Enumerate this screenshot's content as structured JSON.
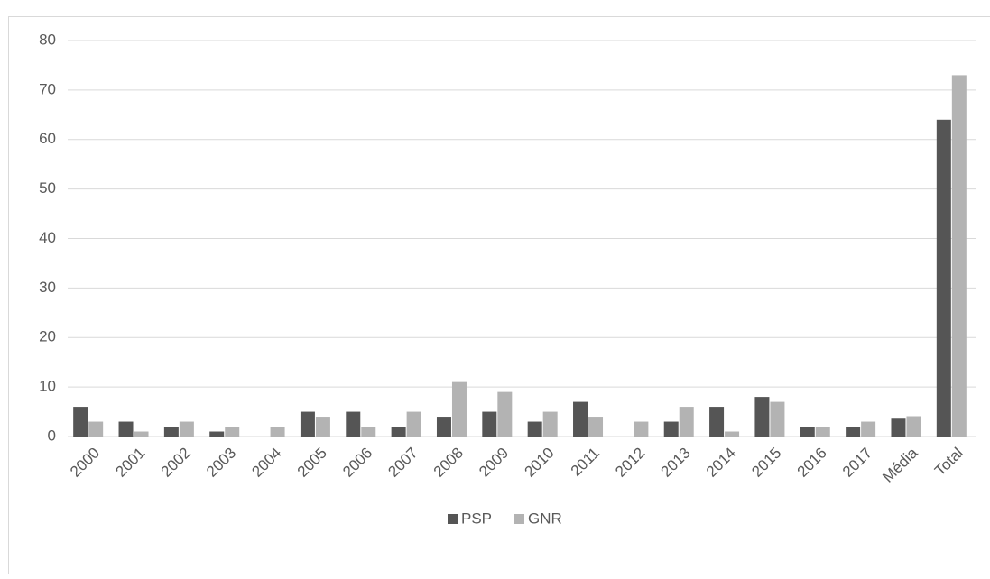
{
  "chart_data": {
    "type": "bar",
    "categories": [
      "2000",
      "2001",
      "2002",
      "2003",
      "2004",
      "2005",
      "2006",
      "2007",
      "2008",
      "2009",
      "2010",
      "2011",
      "2012",
      "2013",
      "2014",
      "2015",
      "2016",
      "2017",
      "Média",
      "Total"
    ],
    "series": [
      {
        "name": "PSP",
        "color": "#555555",
        "values": [
          6,
          3,
          2,
          1,
          0,
          5,
          5,
          2,
          4,
          5,
          3,
          7,
          0,
          3,
          6,
          8,
          2,
          2,
          3.6,
          64
        ]
      },
      {
        "name": "GNR",
        "color": "#b3b3b3",
        "values": [
          3,
          1,
          3,
          2,
          2,
          4,
          2,
          5,
          11,
          9,
          5,
          4,
          3,
          6,
          1,
          7,
          2,
          3,
          4.1,
          73
        ]
      }
    ],
    "ylim": [
      0,
      80
    ],
    "yticks": [
      0,
      10,
      20,
      30,
      40,
      50,
      60,
      70,
      80
    ],
    "grid": true,
    "legend": "bottom"
  }
}
